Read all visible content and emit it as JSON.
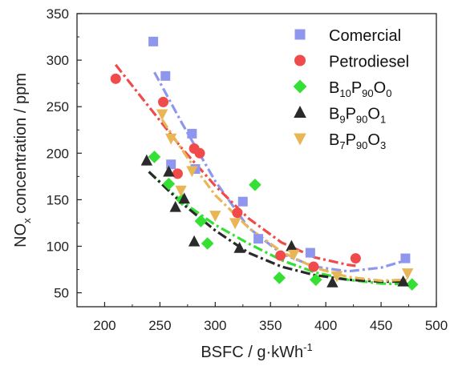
{
  "chart_data": {
    "type": "scatter",
    "title": "",
    "xlabel": "BSFC / g·kWh",
    "xlabel_sup": "-1",
    "ylabel": "NO",
    "ylabel_sub": "x",
    "ylabel_rest": " concentration / ppm",
    "xlim": [
      175,
      500
    ],
    "ylim": [
      35,
      350
    ],
    "xticks": [
      200,
      250,
      300,
      350,
      400,
      450,
      500
    ],
    "yticks": [
      50,
      100,
      150,
      200,
      250,
      300,
      350
    ],
    "grid": false,
    "legend_position": "top-right",
    "series": [
      {
        "marker": "square",
        "color": "#8f96ee",
        "legend": [
          {
            "t": "Comercial",
            "sub": false
          }
        ],
        "points": [
          [
            244,
            320
          ],
          [
            255,
            283
          ],
          [
            260,
            188
          ],
          [
            279,
            221
          ],
          [
            282,
            183
          ],
          [
            325,
            148
          ],
          [
            339,
            108
          ],
          [
            386,
            93
          ],
          [
            472,
            87
          ]
        ],
        "fit_x": [
          245,
          470
        ],
        "fit": [
          [
            245,
            287
          ],
          [
            270,
            232
          ],
          [
            300,
            170
          ],
          [
            330,
            120
          ],
          [
            360,
            92
          ],
          [
            390,
            78
          ],
          [
            420,
            73
          ],
          [
            450,
            77
          ],
          [
            470,
            84
          ]
        ]
      },
      {
        "marker": "circle",
        "color": "#f04a4a",
        "legend": [
          {
            "t": "Petrodiesel",
            "sub": false
          }
        ],
        "points": [
          [
            210,
            280
          ],
          [
            253,
            255
          ],
          [
            266,
            178
          ],
          [
            281,
            205
          ],
          [
            286,
            200
          ],
          [
            320,
            136
          ],
          [
            359,
            90
          ],
          [
            389,
            78
          ],
          [
            427,
            87
          ]
        ],
        "fit": [
          [
            210,
            295
          ],
          [
            240,
            250
          ],
          [
            270,
            205
          ],
          [
            300,
            165
          ],
          [
            330,
            130
          ],
          [
            360,
            104
          ],
          [
            390,
            88
          ],
          [
            420,
            80
          ],
          [
            427,
            79
          ]
        ]
      },
      {
        "marker": "diamond",
        "color": "#33e033",
        "legend": [
          {
            "t": "B",
            "sub": false
          },
          {
            "t": "10",
            "sub": true
          },
          {
            "t": "P",
            "sub": false
          },
          {
            "t": "90",
            "sub": true
          },
          {
            "t": "O",
            "sub": false
          },
          {
            "t": "0",
            "sub": true
          }
        ],
        "points": [
          [
            245,
            196
          ],
          [
            258,
            167
          ],
          [
            270,
            150
          ],
          [
            287,
            127
          ],
          [
            293,
            103
          ],
          [
            336,
            166
          ],
          [
            358,
            66
          ],
          [
            391,
            64
          ],
          [
            478,
            59
          ]
        ],
        "fit": [
          [
            240,
            180
          ],
          [
            270,
            148
          ],
          [
            300,
            123
          ],
          [
            330,
            103
          ],
          [
            360,
            85
          ],
          [
            390,
            72
          ],
          [
            420,
            64
          ],
          [
            450,
            60
          ],
          [
            478,
            59
          ]
        ]
      },
      {
        "marker": "triangle-up",
        "color": "#2a2a2a",
        "legend": [
          {
            "t": "B",
            "sub": false
          },
          {
            "t": "9",
            "sub": true
          },
          {
            "t": "P",
            "sub": false
          },
          {
            "t": "90",
            "sub": true
          },
          {
            "t": "O",
            "sub": false
          },
          {
            "t": "1",
            "sub": true
          }
        ],
        "points": [
          [
            238,
            192
          ],
          [
            258,
            180
          ],
          [
            264,
            142
          ],
          [
            272,
            151
          ],
          [
            281,
            105
          ],
          [
            322,
            98
          ],
          [
            369,
            100
          ],
          [
            406,
            61
          ],
          [
            470,
            62
          ]
        ],
        "fit": [
          [
            240,
            180
          ],
          [
            270,
            146
          ],
          [
            300,
            117
          ],
          [
            330,
            93
          ],
          [
            360,
            78
          ],
          [
            390,
            69
          ],
          [
            420,
            64
          ],
          [
            450,
            62
          ],
          [
            470,
            62
          ]
        ]
      },
      {
        "marker": "triangle-down",
        "color": "#e8b656",
        "legend": [
          {
            "t": "B",
            "sub": false
          },
          {
            "t": "7",
            "sub": true
          },
          {
            "t": "P",
            "sub": false
          },
          {
            "t": "90",
            "sub": true
          },
          {
            "t": "O",
            "sub": false
          },
          {
            "t": "3",
            "sub": true
          }
        ],
        "points": [
          [
            252,
            242
          ],
          [
            260,
            216
          ],
          [
            269,
            160
          ],
          [
            279,
            181
          ],
          [
            300,
            133
          ],
          [
            318,
            125
          ],
          [
            371,
            91
          ],
          [
            410,
            68
          ],
          [
            474,
            71
          ]
        ],
        "fit": [
          [
            252,
            236
          ],
          [
            275,
            195
          ],
          [
            300,
            155
          ],
          [
            330,
            120
          ],
          [
            360,
            94
          ],
          [
            390,
            77
          ],
          [
            420,
            67
          ],
          [
            450,
            63
          ],
          [
            474,
            64
          ]
        ]
      }
    ]
  }
}
